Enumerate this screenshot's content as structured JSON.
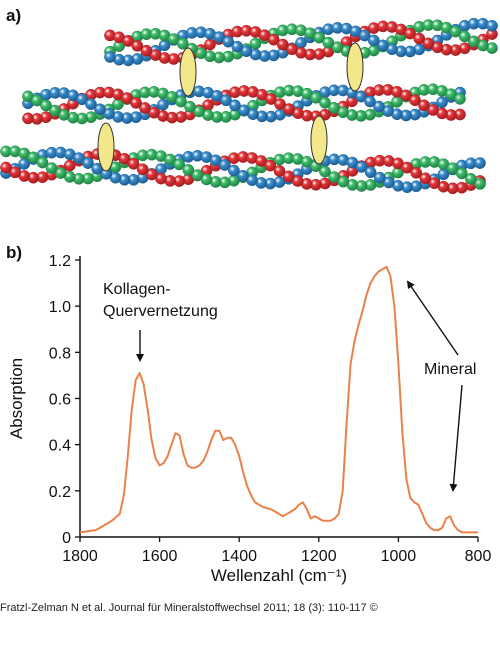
{
  "panel_a": {
    "label": "a)"
  },
  "panel_b": {
    "label": "b)",
    "annotations": {
      "crosslink_line1": "Kollagen-",
      "crosslink_line2": "Quervernetzung",
      "mineral": "Mineral"
    }
  },
  "chart_data": {
    "type": "line",
    "title": "",
    "xlabel": "Wellenzahl (cm⁻¹)",
    "ylabel": "Absorption",
    "xlim": [
      1800,
      800
    ],
    "ylim": [
      0,
      1.2
    ],
    "x_ticks": [
      1800,
      1600,
      1400,
      1200,
      1000,
      800
    ],
    "y_ticks": [
      0,
      0.2,
      0.4,
      0.6,
      0.8,
      1.0,
      1.2
    ],
    "y_tick_labels": [
      "0",
      "0.2",
      "0.4",
      "0.6",
      "0.8",
      "1.0",
      "1.2"
    ],
    "grid": false,
    "series": [
      {
        "color": "#e8824a",
        "x": [
          1800,
          1760,
          1740,
          1720,
          1700,
          1690,
          1680,
          1670,
          1660,
          1650,
          1640,
          1630,
          1620,
          1610,
          1600,
          1590,
          1580,
          1570,
          1560,
          1550,
          1540,
          1530,
          1520,
          1510,
          1500,
          1490,
          1480,
          1470,
          1460,
          1450,
          1440,
          1430,
          1420,
          1410,
          1400,
          1390,
          1380,
          1370,
          1360,
          1350,
          1340,
          1320,
          1300,
          1290,
          1280,
          1270,
          1260,
          1250,
          1240,
          1230,
          1220,
          1210,
          1200,
          1190,
          1180,
          1170,
          1160,
          1150,
          1140,
          1130,
          1120,
          1110,
          1100,
          1090,
          1080,
          1070,
          1060,
          1050,
          1040,
          1030,
          1020,
          1010,
          1000,
          990,
          980,
          970,
          960,
          950,
          940,
          930,
          920,
          910,
          900,
          890,
          880,
          870,
          860,
          850,
          840,
          820,
          800
        ],
        "y": [
          0.02,
          0.03,
          0.05,
          0.07,
          0.1,
          0.18,
          0.35,
          0.55,
          0.68,
          0.71,
          0.66,
          0.55,
          0.42,
          0.34,
          0.31,
          0.32,
          0.35,
          0.4,
          0.45,
          0.44,
          0.36,
          0.31,
          0.3,
          0.3,
          0.31,
          0.33,
          0.37,
          0.42,
          0.46,
          0.46,
          0.42,
          0.43,
          0.43,
          0.4,
          0.35,
          0.28,
          0.22,
          0.18,
          0.15,
          0.14,
          0.13,
          0.12,
          0.1,
          0.09,
          0.1,
          0.11,
          0.12,
          0.14,
          0.15,
          0.12,
          0.08,
          0.09,
          0.08,
          0.07,
          0.07,
          0.07,
          0.08,
          0.1,
          0.2,
          0.5,
          0.75,
          0.85,
          0.92,
          0.98,
          1.05,
          1.1,
          1.13,
          1.15,
          1.16,
          1.17,
          1.13,
          1.0,
          0.75,
          0.45,
          0.25,
          0.17,
          0.15,
          0.14,
          0.1,
          0.06,
          0.04,
          0.03,
          0.03,
          0.04,
          0.08,
          0.09,
          0.05,
          0.03,
          0.02,
          0.02,
          0.02
        ]
      }
    ]
  },
  "caption": "Fratzl-Zelman N et al. Journal für Mineralstoffwechsel 2011; 18 (3): 110-117 ©"
}
